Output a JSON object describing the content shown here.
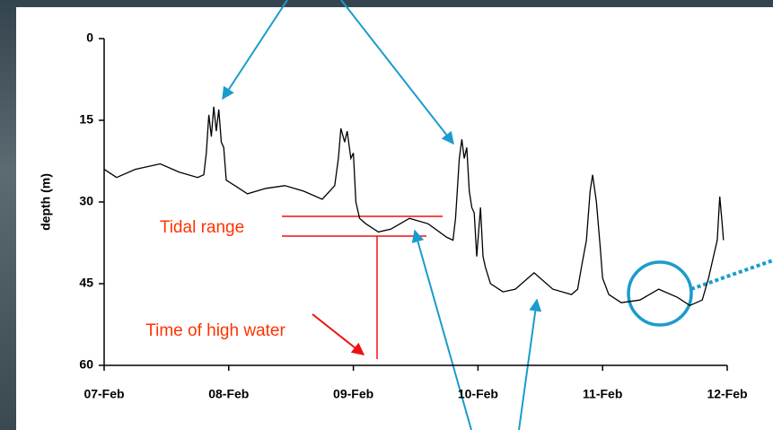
{
  "chart_data": {
    "type": "line",
    "y_label": "depth (m)",
    "x": [
      0,
      0.1,
      0.25,
      0.45,
      0.6,
      0.75,
      0.8,
      0.82,
      0.84,
      0.86,
      0.88,
      0.9,
      0.92,
      0.94,
      0.96,
      0.98,
      1.05,
      1.15,
      1.3,
      1.45,
      1.6,
      1.75,
      1.85,
      1.88,
      1.9,
      1.93,
      1.95,
      1.98,
      2.0,
      2.02,
      2.05,
      2.1,
      2.2,
      2.3,
      2.45,
      2.6,
      2.75,
      2.8,
      2.82,
      2.85,
      2.87,
      2.89,
      2.91,
      2.93,
      2.95,
      2.97,
      2.99,
      3.02,
      3.04,
      3.06,
      3.1,
      3.2,
      3.3,
      3.45,
      3.6,
      3.75,
      3.8,
      3.83,
      3.87,
      3.9,
      3.92,
      3.95,
      3.98,
      4.0,
      4.05,
      4.15,
      4.3,
      4.45,
      4.6,
      4.7,
      4.8,
      4.85,
      4.9,
      4.92,
      4.94,
      4.96,
      4.97
    ],
    "values": [
      24,
      25.5,
      24,
      23,
      24.5,
      25.5,
      25,
      21,
      14,
      18,
      12.5,
      17,
      13,
      19,
      20,
      26,
      27,
      28.5,
      27.5,
      27,
      28,
      29.5,
      27,
      22,
      16.5,
      19,
      17,
      22,
      21,
      30,
      33,
      34,
      35.5,
      35,
      33,
      34,
      36.5,
      37,
      33,
      22,
      18.5,
      22,
      20,
      28,
      31,
      32,
      40,
      31,
      40,
      42,
      45,
      46.5,
      46,
      43,
      46,
      47,
      46,
      42,
      37,
      28,
      25,
      30,
      38,
      44,
      47,
      48.5,
      48,
      46,
      47.5,
      49,
      48,
      44,
      39,
      37,
      29,
      34,
      37
    ],
    "color": "#000000",
    "xlim": [
      0,
      5
    ],
    "xticks": [
      {
        "value": 0,
        "label": "07-Feb"
      },
      {
        "value": 1,
        "label": "08-Feb"
      },
      {
        "value": 2,
        "label": "09-Feb"
      },
      {
        "value": 3,
        "label": "10-Feb"
      },
      {
        "value": 4,
        "label": "11-Feb"
      },
      {
        "value": 5,
        "label": "12-Feb"
      }
    ],
    "ylim": [
      0,
      60
    ],
    "y_inverted": true,
    "yticks": [
      0,
      15,
      30,
      45,
      60
    ],
    "annotations": [
      "Tidal range",
      "Time of high water"
    ]
  }
}
